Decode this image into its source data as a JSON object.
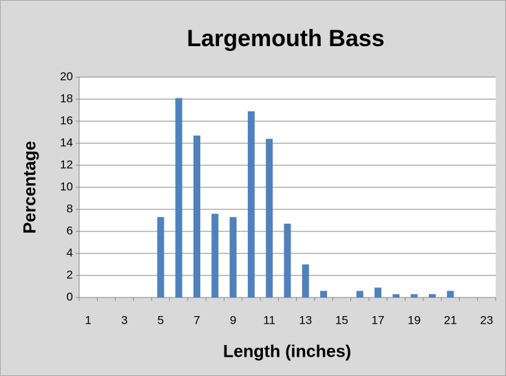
{
  "chart_data": {
    "type": "bar",
    "title": "Largemouth Bass",
    "x_label": "Length (inches)",
    "y_label": "Percentage",
    "categories": [
      "1",
      null,
      "3",
      null,
      "5",
      null,
      "7",
      null,
      "9",
      null,
      "11",
      null,
      "13",
      null,
      "15",
      null,
      "17",
      null,
      "19",
      null,
      "21",
      null,
      "23"
    ],
    "values": [
      0,
      0,
      0,
      0,
      7.3,
      18.1,
      14.7,
      7.6,
      7.3,
      16.9,
      14.4,
      6.7,
      3.0,
      0.6,
      0,
      0.6,
      0.9,
      0.3,
      0.3,
      0.3,
      0.6,
      0,
      0
    ],
    "color": "#4f81bd",
    "ylim": [
      0,
      20
    ],
    "yticks": [
      0,
      2,
      4,
      6,
      8,
      10,
      12,
      14,
      16,
      18,
      20
    ],
    "grid": true
  }
}
